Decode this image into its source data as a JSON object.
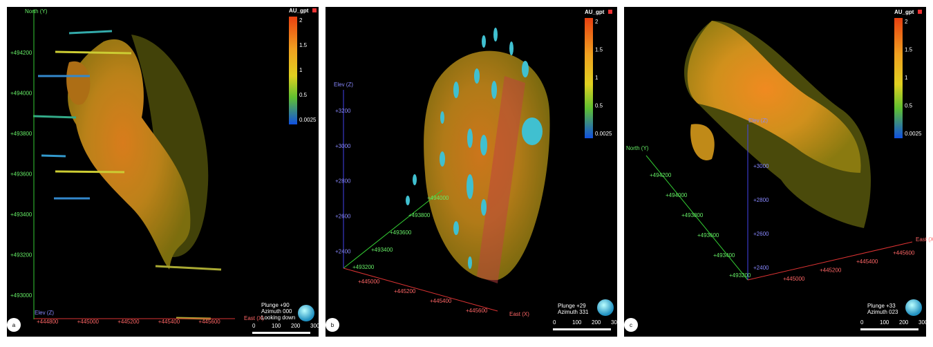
{
  "panels": [
    {
      "label": "a",
      "colorbar": {
        "title": "AU_gpt",
        "ticks": [
          "2",
          "1.5",
          "1",
          "0.5",
          "0.0025"
        ]
      },
      "north": {
        "title": "North (Y)",
        "ticks": [
          "+494200",
          "+494000",
          "+493800",
          "+493600",
          "+493400",
          "+493200",
          "+493000"
        ]
      },
      "elev": {
        "title": "Elev (Z)",
        "ticks": []
      },
      "east": {
        "title": "East (X)",
        "ticks": [
          "+444800",
          "+445000",
          "+445200",
          "+445400",
          "+445600"
        ]
      },
      "view": [
        "Plunge +90",
        "Azimuth 000",
        "Looking down"
      ],
      "scale": [
        "0",
        "100",
        "200",
        "300"
      ]
    },
    {
      "label": "b",
      "colorbar": {
        "title": "AU_gpt",
        "ticks": [
          "2",
          "1.5",
          "1",
          "0.5",
          "0.0025"
        ]
      },
      "north": {
        "title": "",
        "ticks": [
          "+493200",
          "+493400",
          "+493600",
          "+493800",
          "+494000"
        ]
      },
      "elev": {
        "title": "Elev (Z)",
        "ticks": [
          "+3200",
          "+3000",
          "+2800",
          "+2600",
          "+2400"
        ]
      },
      "east": {
        "title": "East (X)",
        "ticks": [
          "+445000",
          "+445200",
          "+445400",
          "+445600"
        ]
      },
      "view": [
        "Plunge +29",
        "Azimuth 331"
      ],
      "scale": [
        "0",
        "100",
        "200",
        "300"
      ]
    },
    {
      "label": "c",
      "colorbar": {
        "title": "AU_gpt",
        "ticks": [
          "2",
          "1.5",
          "1",
          "0.5",
          "0.0025"
        ]
      },
      "north": {
        "title": "North (Y)",
        "ticks": [
          "+494200",
          "+494000",
          "+493800",
          "+493600",
          "+493400",
          "+493200"
        ]
      },
      "elev": {
        "title": "Elev (Z)",
        "ticks": [
          "+3000",
          "+2800",
          "+2600",
          "+2400"
        ]
      },
      "east": {
        "title": "East (X)",
        "ticks": [
          "+445000",
          "+445200",
          "+445400",
          "+445600"
        ]
      },
      "view": [
        "Plunge +33",
        "Azimuth 023"
      ],
      "scale": [
        "0",
        "100",
        "200",
        "300"
      ]
    }
  ]
}
